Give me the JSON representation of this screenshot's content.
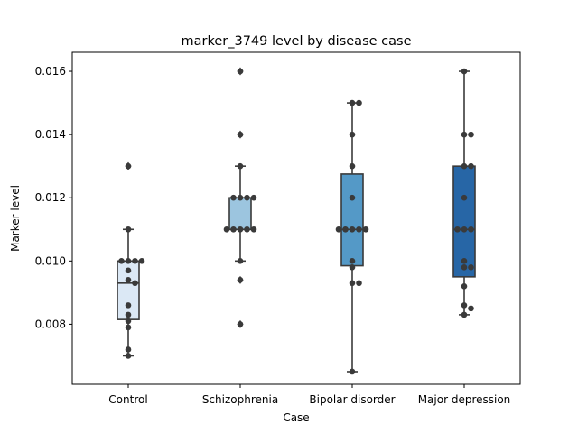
{
  "chart_data": {
    "type": "box",
    "title": "marker_3749 level by disease case",
    "xlabel": "Case",
    "ylabel": "Marker level",
    "ylim": [
      0.0061,
      0.0166
    ],
    "yticks": [
      0.008,
      0.01,
      0.012,
      0.014,
      0.016
    ],
    "ytick_labels": [
      "0.008",
      "0.010",
      "0.012",
      "0.014",
      "0.016"
    ],
    "categories": [
      "Control",
      "Schizophrenia",
      "Bipolar disorder",
      "Major depression"
    ],
    "grid": false,
    "legend": "none",
    "point_color": "#3a3a3a",
    "box_colors": [
      "#dbe8f5",
      "#9cc5df",
      "#5499c7",
      "#2766a6"
    ],
    "boxes": [
      {
        "q1": 0.00815,
        "median": 0.0093,
        "q3": 0.01,
        "whisker_low": 0.007,
        "whisker_high": 0.011,
        "outliers": [
          0.013
        ]
      },
      {
        "q1": 0.011,
        "median": 0.011,
        "q3": 0.012,
        "whisker_low": 0.01,
        "whisker_high": 0.013,
        "outliers": [
          0.008,
          0.0094,
          0.014,
          0.016
        ]
      },
      {
        "q1": 0.00985,
        "median": 0.011,
        "q3": 0.01275,
        "whisker_low": 0.0065,
        "whisker_high": 0.015,
        "outliers": []
      },
      {
        "q1": 0.0095,
        "median": 0.011,
        "q3": 0.013,
        "whisker_low": 0.0083,
        "whisker_high": 0.016,
        "outliers": []
      }
    ],
    "points": [
      [
        0.013,
        0.011,
        0.01,
        0.01,
        0.01,
        0.01,
        0.0097,
        0.0094,
        0.0093,
        0.0086,
        0.0083,
        0.0081,
        0.0079,
        0.0072,
        0.007
      ],
      [
        0.016,
        0.014,
        0.013,
        0.012,
        0.012,
        0.012,
        0.012,
        0.011,
        0.011,
        0.011,
        0.011,
        0.011,
        0.01,
        0.0094,
        0.008
      ],
      [
        0.015,
        0.015,
        0.014,
        0.013,
        0.012,
        0.011,
        0.011,
        0.011,
        0.011,
        0.011,
        0.01,
        0.0098,
        0.0093,
        0.0093,
        0.0065
      ],
      [
        0.016,
        0.014,
        0.014,
        0.013,
        0.013,
        0.012,
        0.011,
        0.011,
        0.011,
        0.01,
        0.0098,
        0.0098,
        0.0092,
        0.0086,
        0.0085,
        0.0083
      ]
    ]
  }
}
